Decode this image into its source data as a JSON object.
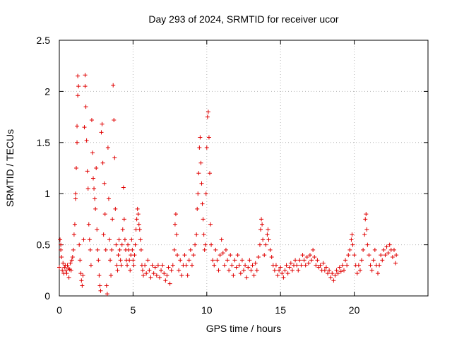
{
  "chart_data": {
    "type": "scatter",
    "title": "Day 293 of 2024, SRMTID for receiver ucor",
    "xlabel": "GPS time / hours",
    "ylabel": "SRMTID / TECUs",
    "xlim": [
      0,
      25
    ],
    "ylim": [
      0,
      2.5
    ],
    "xticks": [
      0,
      5,
      10,
      15,
      20
    ],
    "yticks": [
      0,
      0.5,
      1,
      1.5,
      2,
      2.5
    ],
    "xtick_labels": [
      "0",
      "5",
      "10",
      "15",
      "20"
    ],
    "ytick_labels": [
      "0",
      "0.5",
      "1",
      "1.5",
      "2",
      "2.5"
    ],
    "grid": true,
    "marker": "+",
    "color": "#e00000",
    "series": [
      {
        "name": "SRMTID",
        "points": [
          [
            0.0,
            0.28
          ],
          [
            0.05,
            0.55
          ],
          [
            0.1,
            0.5
          ],
          [
            0.1,
            0.45
          ],
          [
            0.15,
            0.38
          ],
          [
            0.2,
            0.25
          ],
          [
            0.25,
            0.32
          ],
          [
            0.3,
            0.22
          ],
          [
            0.35,
            0.28
          ],
          [
            0.4,
            0.3
          ],
          [
            0.45,
            0.25
          ],
          [
            0.5,
            0.22
          ],
          [
            0.55,
            0.3
          ],
          [
            0.6,
            0.27
          ],
          [
            0.65,
            0.18
          ],
          [
            0.7,
            0.26
          ],
          [
            0.75,
            0.32
          ],
          [
            0.8,
            0.25
          ],
          [
            0.85,
            0.35
          ],
          [
            0.9,
            0.38
          ],
          [
            0.95,
            0.45
          ],
          [
            1.0,
            0.6
          ],
          [
            1.05,
            0.7
          ],
          [
            1.1,
            0.95
          ],
          [
            1.1,
            1.0
          ],
          [
            1.15,
            1.25
          ],
          [
            1.2,
            1.5
          ],
          [
            1.2,
            1.66
          ],
          [
            1.25,
            1.96
          ],
          [
            1.25,
            2.15
          ],
          [
            1.3,
            2.05
          ],
          [
            1.35,
            0.5
          ],
          [
            1.4,
            0.35
          ],
          [
            1.45,
            0.22
          ],
          [
            1.5,
            0.15
          ],
          [
            1.55,
            0.1
          ],
          [
            1.6,
            0.2
          ],
          [
            1.65,
            0.55
          ],
          [
            1.7,
            1.65
          ],
          [
            1.75,
            2.05
          ],
          [
            1.75,
            2.16
          ],
          [
            1.8,
            1.85
          ],
          [
            1.85,
            1.52
          ],
          [
            1.9,
            1.22
          ],
          [
            1.95,
            1.05
          ],
          [
            2.0,
            0.7
          ],
          [
            2.05,
            0.55
          ],
          [
            2.1,
            0.45
          ],
          [
            2.15,
            0.3
          ],
          [
            2.2,
            1.72
          ],
          [
            2.25,
            1.4
          ],
          [
            2.3,
            1.15
          ],
          [
            2.35,
            1.05
          ],
          [
            2.4,
            0.95
          ],
          [
            2.45,
            0.85
          ],
          [
            2.5,
            1.25
          ],
          [
            2.55,
            0.65
          ],
          [
            2.6,
            0.45
          ],
          [
            2.65,
            0.35
          ],
          [
            2.7,
            0.2
          ],
          [
            2.75,
            0.1
          ],
          [
            2.8,
            0.05
          ],
          [
            2.85,
            1.6
          ],
          [
            2.9,
            1.68
          ],
          [
            2.95,
            1.3
          ],
          [
            3.0,
            0.6
          ],
          [
            3.05,
            1.1
          ],
          [
            3.1,
            0.8
          ],
          [
            3.15,
            0.45
          ],
          [
            3.2,
            0.1
          ],
          [
            3.25,
            0.02
          ],
          [
            3.3,
            1.45
          ],
          [
            3.35,
            0.95
          ],
          [
            3.4,
            0.55
          ],
          [
            3.45,
            0.35
          ],
          [
            3.5,
            0.2
          ],
          [
            3.55,
            0.45
          ],
          [
            3.6,
            0.75
          ],
          [
            3.65,
            2.06
          ],
          [
            3.7,
            1.72
          ],
          [
            3.75,
            1.35
          ],
          [
            3.8,
            0.85
          ],
          [
            3.85,
            0.5
          ],
          [
            3.9,
            0.3
          ],
          [
            3.95,
            0.25
          ],
          [
            4.0,
            0.4
          ],
          [
            4.05,
            0.55
          ],
          [
            4.1,
            0.45
          ],
          [
            4.15,
            0.35
          ],
          [
            4.2,
            0.3
          ],
          [
            4.25,
            0.5
          ],
          [
            4.3,
            0.65
          ],
          [
            4.35,
            1.06
          ],
          [
            4.4,
            0.75
          ],
          [
            4.45,
            0.55
          ],
          [
            4.5,
            0.45
          ],
          [
            4.55,
            0.35
          ],
          [
            4.6,
            0.3
          ],
          [
            4.65,
            0.5
          ],
          [
            4.7,
            0.45
          ],
          [
            4.75,
            0.35
          ],
          [
            4.8,
            0.25
          ],
          [
            4.85,
            0.4
          ],
          [
            4.9,
            0.55
          ],
          [
            4.95,
            0.45
          ],
          [
            5.0,
            0.35
          ],
          [
            5.05,
            0.3
          ],
          [
            5.1,
            0.4
          ],
          [
            5.15,
            0.5
          ],
          [
            5.2,
            0.65
          ],
          [
            5.25,
            0.75
          ],
          [
            5.3,
            0.85
          ],
          [
            5.35,
            0.8
          ],
          [
            5.4,
            0.7
          ],
          [
            5.45,
            0.65
          ],
          [
            5.5,
            0.55
          ],
          [
            5.55,
            0.45
          ],
          [
            5.6,
            0.3
          ],
          [
            5.65,
            0.25
          ],
          [
            5.7,
            0.2
          ],
          [
            5.8,
            0.3
          ],
          [
            5.9,
            0.22
          ],
          [
            6.0,
            0.35
          ],
          [
            6.1,
            0.25
          ],
          [
            6.2,
            0.18
          ],
          [
            6.3,
            0.3
          ],
          [
            6.4,
            0.22
          ],
          [
            6.5,
            0.28
          ],
          [
            6.6,
            0.2
          ],
          [
            6.7,
            0.3
          ],
          [
            6.8,
            0.18
          ],
          [
            6.9,
            0.25
          ],
          [
            7.0,
            0.3
          ],
          [
            7.1,
            0.22
          ],
          [
            7.2,
            0.15
          ],
          [
            7.3,
            0.2
          ],
          [
            7.4,
            0.28
          ],
          [
            7.5,
            0.12
          ],
          [
            7.6,
            0.25
          ],
          [
            7.7,
            0.3
          ],
          [
            7.8,
            0.45
          ],
          [
            7.85,
            0.7
          ],
          [
            7.9,
            0.8
          ],
          [
            7.95,
            0.6
          ],
          [
            8.0,
            0.4
          ],
          [
            8.1,
            0.25
          ],
          [
            8.2,
            0.35
          ],
          [
            8.3,
            0.2
          ],
          [
            8.4,
            0.3
          ],
          [
            8.5,
            0.4
          ],
          [
            8.6,
            0.3
          ],
          [
            8.7,
            0.2
          ],
          [
            8.8,
            0.35
          ],
          [
            8.9,
            0.45
          ],
          [
            9.0,
            0.3
          ],
          [
            9.1,
            0.4
          ],
          [
            9.2,
            0.5
          ],
          [
            9.3,
            0.6
          ],
          [
            9.35,
            0.85
          ],
          [
            9.4,
            1.0
          ],
          [
            9.45,
            1.2
          ],
          [
            9.5,
            1.45
          ],
          [
            9.55,
            1.55
          ],
          [
            9.6,
            1.3
          ],
          [
            9.65,
            1.1
          ],
          [
            9.7,
            0.9
          ],
          [
            9.75,
            0.75
          ],
          [
            9.8,
            0.6
          ],
          [
            9.85,
            0.45
          ],
          [
            9.9,
            0.5
          ],
          [
            9.95,
            1.0
          ],
          [
            10.0,
            1.45
          ],
          [
            10.05,
            1.75
          ],
          [
            10.1,
            1.8
          ],
          [
            10.15,
            1.55
          ],
          [
            10.2,
            1.2
          ],
          [
            10.25,
            0.7
          ],
          [
            10.3,
            0.5
          ],
          [
            10.4,
            0.35
          ],
          [
            10.5,
            0.3
          ],
          [
            10.6,
            0.45
          ],
          [
            10.7,
            0.35
          ],
          [
            10.8,
            0.25
          ],
          [
            10.9,
            0.4
          ],
          [
            11.0,
            0.55
          ],
          [
            11.1,
            0.42
          ],
          [
            11.2,
            0.3
          ],
          [
            11.3,
            0.45
          ],
          [
            11.4,
            0.35
          ],
          [
            11.5,
            0.25
          ],
          [
            11.6,
            0.4
          ],
          [
            11.7,
            0.3
          ],
          [
            11.8,
            0.2
          ],
          [
            11.9,
            0.35
          ],
          [
            12.0,
            0.28
          ],
          [
            12.1,
            0.4
          ],
          [
            12.2,
            0.3
          ],
          [
            12.3,
            0.22
          ],
          [
            12.4,
            0.35
          ],
          [
            12.5,
            0.25
          ],
          [
            12.6,
            0.3
          ],
          [
            12.7,
            0.18
          ],
          [
            12.8,
            0.28
          ],
          [
            12.9,
            0.35
          ],
          [
            13.0,
            0.25
          ],
          [
            13.1,
            0.3
          ],
          [
            13.2,
            0.2
          ],
          [
            13.3,
            0.32
          ],
          [
            13.4,
            0.25
          ],
          [
            13.5,
            0.38
          ],
          [
            13.6,
            0.5
          ],
          [
            13.65,
            0.65
          ],
          [
            13.7,
            0.75
          ],
          [
            13.75,
            0.7
          ],
          [
            13.8,
            0.55
          ],
          [
            13.9,
            0.4
          ],
          [
            14.0,
            0.5
          ],
          [
            14.1,
            0.6
          ],
          [
            14.15,
            0.65
          ],
          [
            14.2,
            0.55
          ],
          [
            14.3,
            0.45
          ],
          [
            14.4,
            0.38
          ],
          [
            14.5,
            0.3
          ],
          [
            14.6,
            0.25
          ],
          [
            14.7,
            0.3
          ],
          [
            14.8,
            0.2
          ],
          [
            14.9,
            0.25
          ],
          [
            15.0,
            0.28
          ],
          [
            15.1,
            0.22
          ],
          [
            15.2,
            0.18
          ],
          [
            15.3,
            0.25
          ],
          [
            15.4,
            0.3
          ],
          [
            15.5,
            0.22
          ],
          [
            15.6,
            0.28
          ],
          [
            15.7,
            0.32
          ],
          [
            15.8,
            0.25
          ],
          [
            15.9,
            0.3
          ],
          [
            16.0,
            0.35
          ],
          [
            16.1,
            0.3
          ],
          [
            16.2,
            0.25
          ],
          [
            16.3,
            0.35
          ],
          [
            16.4,
            0.3
          ],
          [
            16.5,
            0.4
          ],
          [
            16.6,
            0.35
          ],
          [
            16.7,
            0.3
          ],
          [
            16.8,
            0.38
          ],
          [
            16.9,
            0.32
          ],
          [
            17.0,
            0.4
          ],
          [
            17.1,
            0.35
          ],
          [
            17.2,
            0.45
          ],
          [
            17.3,
            0.38
          ],
          [
            17.4,
            0.3
          ],
          [
            17.5,
            0.35
          ],
          [
            17.6,
            0.28
          ],
          [
            17.7,
            0.3
          ],
          [
            17.8,
            0.25
          ],
          [
            17.9,
            0.32
          ],
          [
            18.0,
            0.25
          ],
          [
            18.1,
            0.28
          ],
          [
            18.2,
            0.22
          ],
          [
            18.3,
            0.25
          ],
          [
            18.4,
            0.18
          ],
          [
            18.5,
            0.22
          ],
          [
            18.6,
            0.15
          ],
          [
            18.7,
            0.2
          ],
          [
            18.8,
            0.25
          ],
          [
            18.9,
            0.22
          ],
          [
            19.0,
            0.28
          ],
          [
            19.1,
            0.24
          ],
          [
            19.2,
            0.3
          ],
          [
            19.3,
            0.25
          ],
          [
            19.4,
            0.35
          ],
          [
            19.5,
            0.3
          ],
          [
            19.6,
            0.4
          ],
          [
            19.7,
            0.45
          ],
          [
            19.8,
            0.55
          ],
          [
            19.85,
            0.6
          ],
          [
            19.9,
            0.5
          ],
          [
            20.0,
            0.4
          ],
          [
            20.1,
            0.3
          ],
          [
            20.2,
            0.22
          ],
          [
            20.3,
            0.3
          ],
          [
            20.4,
            0.25
          ],
          [
            20.5,
            0.35
          ],
          [
            20.6,
            0.45
          ],
          [
            20.7,
            0.6
          ],
          [
            20.75,
            0.75
          ],
          [
            20.8,
            0.8
          ],
          [
            20.85,
            0.65
          ],
          [
            20.9,
            0.5
          ],
          [
            21.0,
            0.4
          ],
          [
            21.1,
            0.3
          ],
          [
            21.2,
            0.25
          ],
          [
            21.3,
            0.35
          ],
          [
            21.4,
            0.45
          ],
          [
            21.5,
            0.3
          ],
          [
            21.6,
            0.22
          ],
          [
            21.7,
            0.3
          ],
          [
            21.8,
            0.4
          ],
          [
            21.9,
            0.35
          ],
          [
            22.0,
            0.45
          ],
          [
            22.1,
            0.4
          ],
          [
            22.2,
            0.48
          ],
          [
            22.3,
            0.42
          ],
          [
            22.4,
            0.5
          ],
          [
            22.5,
            0.45
          ],
          [
            22.6,
            0.38
          ],
          [
            22.7,
            0.45
          ],
          [
            22.8,
            0.32
          ],
          [
            22.85,
            0.4
          ]
        ]
      }
    ]
  }
}
